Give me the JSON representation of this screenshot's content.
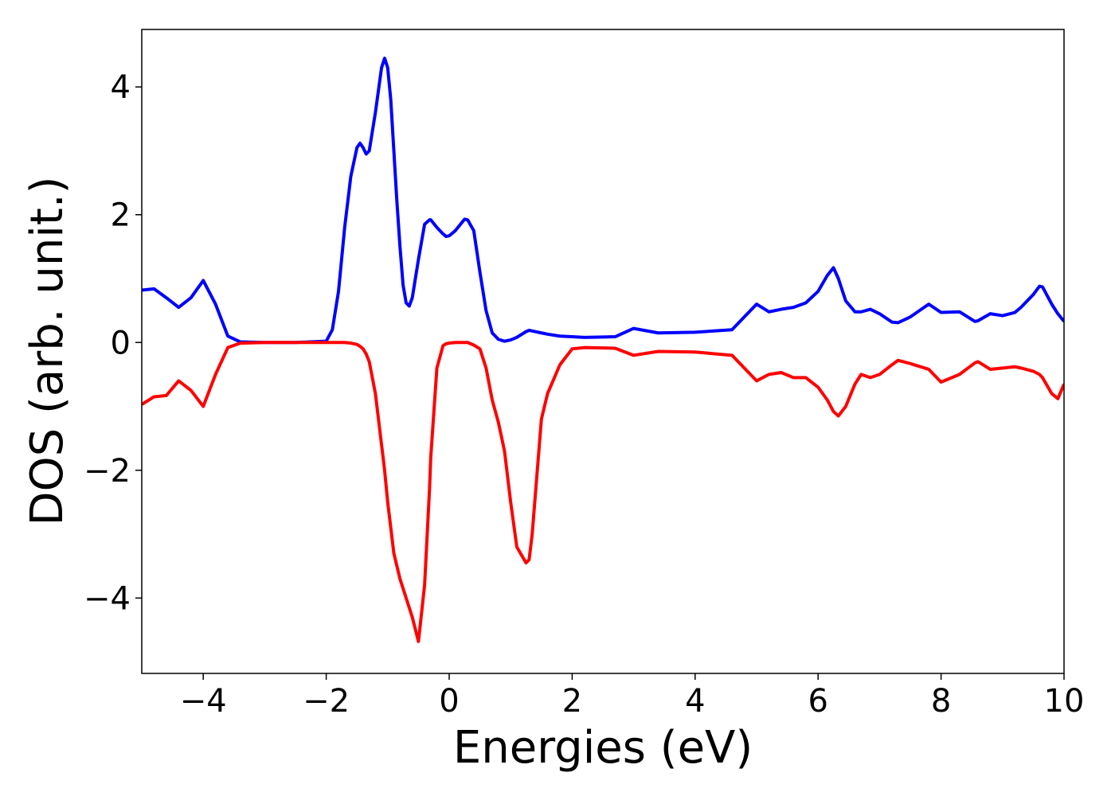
{
  "chart_data": {
    "type": "line",
    "xlabel": "Energies (eV)",
    "ylabel": "DOS (arb. unit.)",
    "xlim": [
      -5,
      10
    ],
    "ylim": [
      -5.18,
      4.9
    ],
    "xticks": [
      {
        "value": -4,
        "label": "−4"
      },
      {
        "value": -2,
        "label": "−2"
      },
      0,
      2,
      4,
      6,
      8,
      10
    ],
    "yticks": [
      {
        "value": -4,
        "label": "−4"
      },
      {
        "value": -2,
        "label": "−2"
      },
      0,
      2,
      4
    ],
    "grid": false,
    "x": [
      -5,
      -4.8,
      -4.6,
      -4.4,
      -4.2,
      -4,
      -3.8,
      -3.6,
      -3.4,
      -3,
      -2.5,
      -2,
      -1.9,
      -1.8,
      -1.7,
      -1.6,
      -1.5,
      -1.45,
      -1.4,
      -1.35,
      -1.3,
      -1.2,
      -1.1,
      -1.05,
      -1,
      -0.95,
      -0.9,
      -0.85,
      -0.8,
      -0.75,
      -0.7,
      -0.65,
      -0.6,
      -0.5,
      -0.4,
      -0.32,
      -0.3,
      -0.2,
      -0.1,
      -0.05,
      0,
      0.1,
      0.25,
      0.3,
      0.4,
      0.5,
      0.6,
      0.7,
      0.8,
      0.9,
      1,
      1.1,
      1.25,
      1.3,
      1.35,
      1.5,
      1.6,
      1.8,
      2,
      2.2,
      2.7,
      3,
      3.4,
      4,
      4.6,
      4.8,
      5,
      5.2,
      5.4,
      5.6,
      5.8,
      6,
      6.15,
      6.25,
      6.33,
      6.45,
      6.6,
      6.7,
      6.85,
      7,
      7.2,
      7.3,
      7.5,
      7.8,
      8,
      8.3,
      8.55,
      8.6,
      8.8,
      9,
      9.2,
      9.3,
      9.5,
      9.6,
      9.65,
      9.8,
      9.9,
      10
    ],
    "series": [
      {
        "color": "#0000ff",
        "values": [
          0.82,
          0.84,
          0.7,
          0.55,
          0.7,
          0.97,
          0.6,
          0.1,
          0.01,
          0,
          0,
          0.02,
          0.2,
          0.8,
          1.8,
          2.6,
          3.05,
          3.12,
          3.05,
          2.95,
          3.0,
          3.6,
          4.3,
          4.45,
          4.3,
          3.8,
          3.0,
          2.2,
          1.5,
          0.9,
          0.62,
          0.57,
          0.7,
          1.3,
          1.85,
          1.92,
          1.92,
          1.8,
          1.7,
          1.66,
          1.67,
          1.75,
          1.93,
          1.92,
          1.75,
          1.1,
          0.5,
          0.15,
          0.05,
          0.02,
          0.04,
          0.08,
          0.17,
          0.19,
          0.18,
          0.15,
          0.13,
          0.1,
          0.09,
          0.08,
          0.09,
          0.22,
          0.15,
          0.16,
          0.2,
          0.4,
          0.6,
          0.48,
          0.52,
          0.55,
          0.62,
          0.8,
          1.05,
          1.17,
          1.0,
          0.65,
          0.48,
          0.48,
          0.52,
          0.45,
          0.32,
          0.31,
          0.4,
          0.6,
          0.47,
          0.48,
          0.33,
          0.34,
          0.45,
          0.42,
          0.47,
          0.55,
          0.75,
          0.88,
          0.87,
          0.6,
          0.45,
          0.33
        ]
      },
      {
        "color": "#ff0000",
        "values": [
          -0.97,
          -0.85,
          -0.83,
          -0.6,
          -0.75,
          -1.0,
          -0.5,
          -0.08,
          -0.01,
          0,
          0,
          0,
          0,
          0,
          0,
          -0.01,
          -0.03,
          -0.06,
          -0.1,
          -0.18,
          -0.3,
          -0.8,
          -1.6,
          -2.0,
          -2.5,
          -2.9,
          -3.3,
          -3.5,
          -3.7,
          -3.85,
          -4.0,
          -4.15,
          -4.3,
          -4.68,
          -3.8,
          -2.3,
          -1.8,
          -0.4,
          -0.05,
          -0.02,
          -0.01,
          0,
          0,
          0,
          -0.04,
          -0.1,
          -0.4,
          -0.9,
          -1.25,
          -1.7,
          -2.5,
          -3.2,
          -3.45,
          -3.4,
          -3.0,
          -1.2,
          -0.8,
          -0.35,
          -0.1,
          -0.08,
          -0.09,
          -0.2,
          -0.14,
          -0.15,
          -0.2,
          -0.4,
          -0.6,
          -0.5,
          -0.47,
          -0.55,
          -0.55,
          -0.7,
          -0.9,
          -1.08,
          -1.15,
          -1.0,
          -0.65,
          -0.5,
          -0.55,
          -0.5,
          -0.35,
          -0.28,
          -0.33,
          -0.42,
          -0.62,
          -0.5,
          -0.32,
          -0.3,
          -0.42,
          -0.4,
          -0.38,
          -0.4,
          -0.45,
          -0.5,
          -0.55,
          -0.8,
          -0.88,
          -0.65
        ]
      }
    ]
  }
}
